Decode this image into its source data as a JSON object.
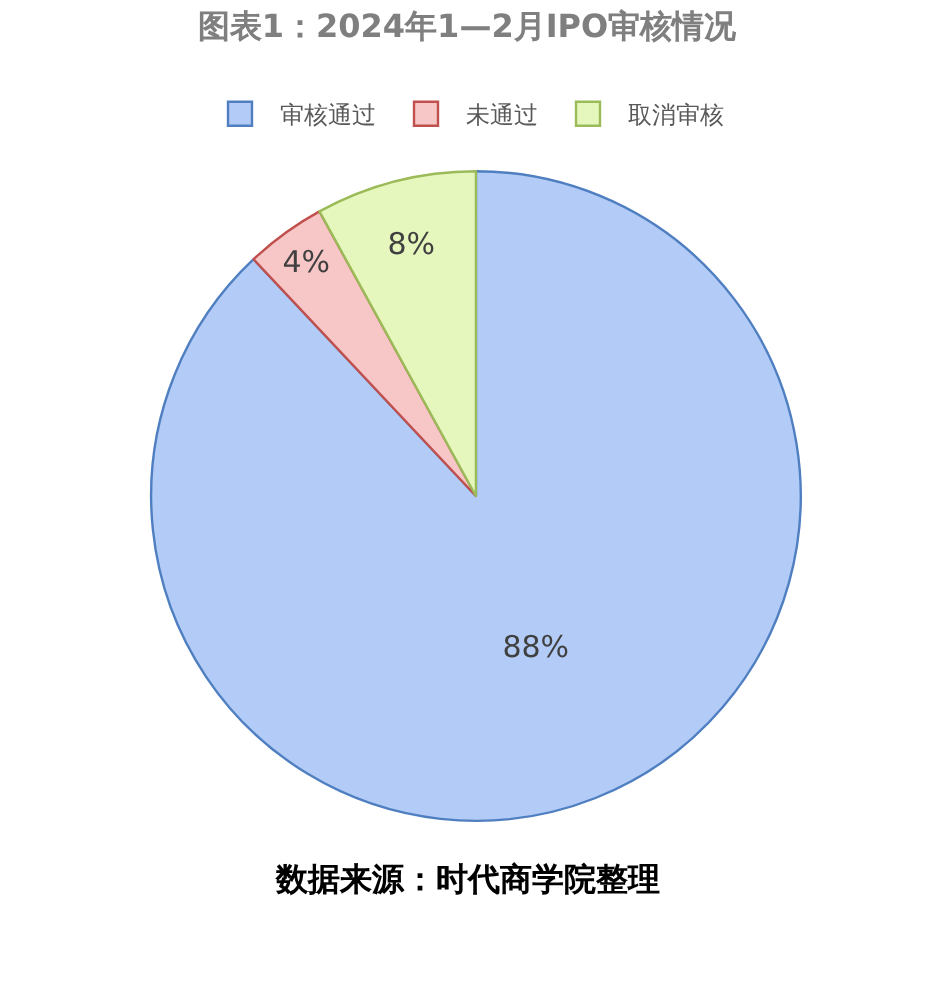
{
  "chart_data": {
    "type": "pie",
    "title": "图表1：2024年1—2月IPO审核情况",
    "categories": [
      "审核通过",
      "未通过",
      "取消审核"
    ],
    "values": [
      88,
      4,
      8
    ],
    "value_labels": [
      "88%",
      "4%",
      "8%"
    ],
    "colors": [
      "#b3ccf7",
      "#f7c6c6",
      "#e6f7bd"
    ],
    "legend": "top",
    "annotations": [
      "数据来源：时代商学院整理"
    ]
  }
}
